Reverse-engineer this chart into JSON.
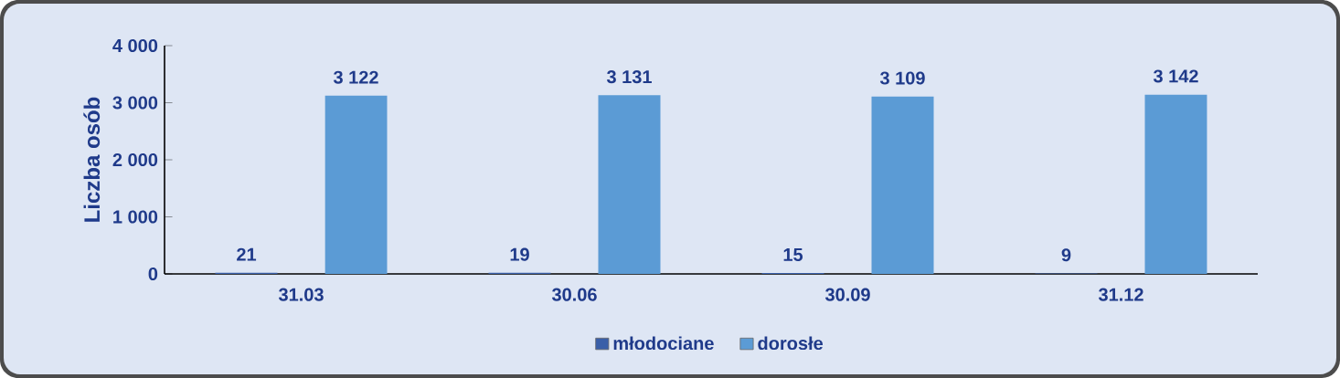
{
  "chart_data": {
    "type": "bar",
    "ylabel": "Liczba osób",
    "categories": [
      "31.03",
      "30.06",
      "30.09",
      "31.12"
    ],
    "series": [
      {
        "name": "młodociane",
        "color": "#3a5fa8",
        "values": [
          21,
          19,
          15,
          9
        ],
        "value_labels": [
          "21",
          "19",
          "15",
          "9"
        ]
      },
      {
        "name": "dorosłe",
        "color": "#5b9bd5",
        "values": [
          3122,
          3131,
          3109,
          3142
        ],
        "value_labels": [
          "3 122",
          "3 131",
          "3 109",
          "3 142"
        ]
      }
    ],
    "ylim": [
      0,
      4000
    ],
    "yticks": [
      0,
      {
        "value": 1000,
        "label": "1 000"
      },
      {
        "value": 2000,
        "label": "2 000"
      },
      {
        "value": 3000,
        "label": "3 000"
      },
      {
        "value": 4000,
        "label": "4 000"
      }
    ],
    "legend": "bottom"
  }
}
